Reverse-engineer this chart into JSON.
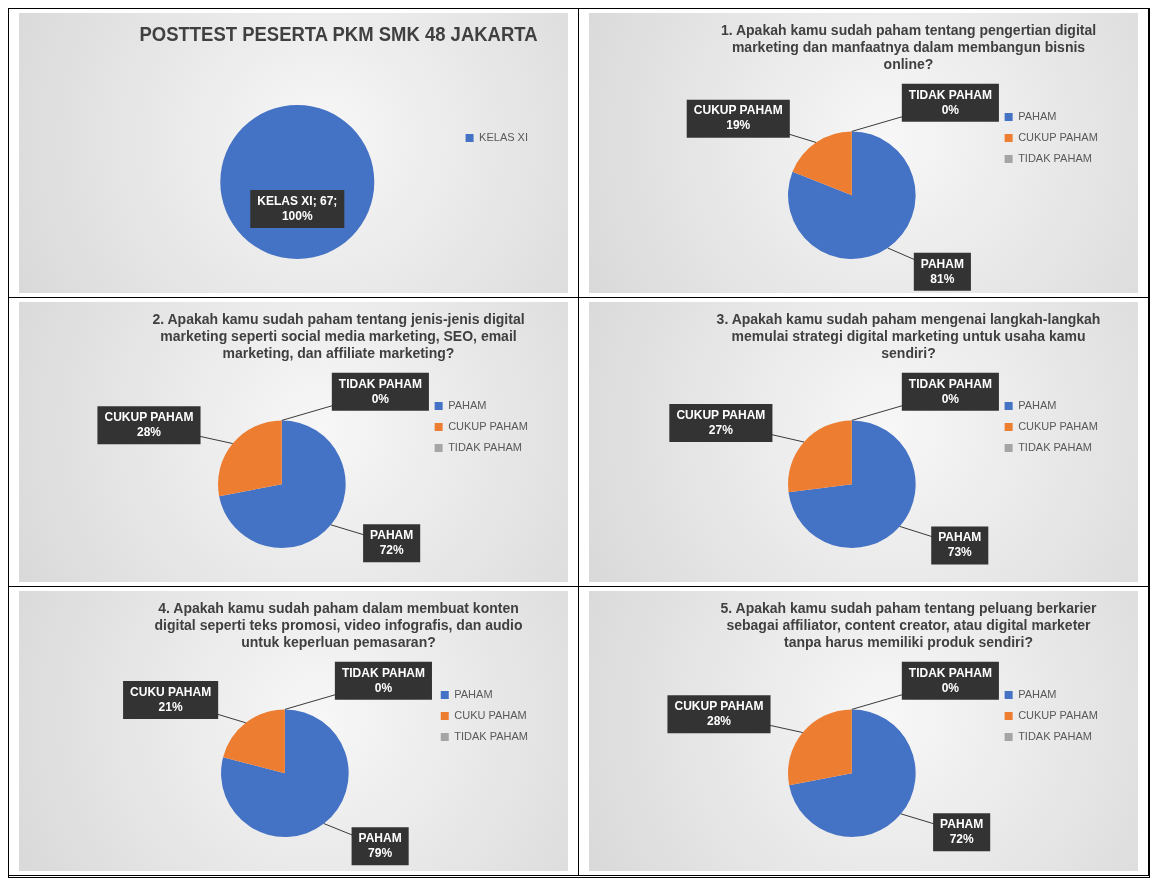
{
  "chart_data": [
    {
      "type": "pie",
      "title": "POSTTEST PESERTA PKM SMK 48 JAKARTA",
      "categories": [
        "KELAS XI"
      ],
      "values": [
        67
      ],
      "colors": [
        "#4472c4"
      ],
      "value_labels": [
        "KELAS XI; 67; 100%"
      ],
      "legend": "right"
    },
    {
      "type": "pie",
      "title": "1. Apakah kamu sudah paham tentang pengertian digital marketing dan manfaatnya dalam membangun bisnis online?",
      "categories": [
        "PAHAM",
        "CUKUP PAHAM",
        "TIDAK PAHAM"
      ],
      "values": [
        81,
        19,
        0
      ],
      "colors": [
        "#4472c4",
        "#ed7d31",
        "#a5a5a5"
      ],
      "value_labels": [
        "PAHAM 81%",
        "CUKUP PAHAM 19%",
        "TIDAK PAHAM 0%"
      ],
      "legend": "right"
    },
    {
      "type": "pie",
      "title": "2. Apakah kamu sudah paham tentang jenis-jenis digital marketing seperti social media marketing, SEO, email marketing, dan affiliate marketing?",
      "categories": [
        "PAHAM",
        "CUKUP PAHAM",
        "TIDAK PAHAM"
      ],
      "values": [
        72,
        28,
        0
      ],
      "colors": [
        "#4472c4",
        "#ed7d31",
        "#a5a5a5"
      ],
      "value_labels": [
        "PAHAM 72%",
        "CUKUP PAHAM 28%",
        "TIDAK PAHAM 0%"
      ],
      "legend": "right"
    },
    {
      "type": "pie",
      "title": "3. Apakah kamu sudah paham mengenai langkah-langkah memulai strategi digital marketing untuk usaha kamu sendiri?",
      "categories": [
        "PAHAM",
        "CUKUP PAHAM",
        "TIDAK PAHAM"
      ],
      "values": [
        73,
        27,
        0
      ],
      "colors": [
        "#4472c4",
        "#ed7d31",
        "#a5a5a5"
      ],
      "value_labels": [
        "PAHAM 73%",
        "CUKUP PAHAM 27%",
        "TIDAK PAHAM 0%"
      ],
      "legend": "right"
    },
    {
      "type": "pie",
      "title": "4. Apakah kamu sudah paham dalam membuat konten digital seperti teks promosi, video infografis, dan audio untuk keperluan pemasaran?",
      "categories": [
        "PAHAM",
        "CUKU PAHAM",
        "TIDAK PAHAM"
      ],
      "values": [
        79,
        21,
        0
      ],
      "colors": [
        "#4472c4",
        "#ed7d31",
        "#a5a5a5"
      ],
      "value_labels": [
        "PAHAM 79%",
        "CUKU PAHAM 21%",
        "TIDAK PAHAM 0%"
      ],
      "legend": "right"
    },
    {
      "type": "pie",
      "title": "5. Apakah kamu sudah paham tentang peluang berkarier sebagai affiliator, content creator, atau digital marketer tanpa harus memiliki produk sendiri?",
      "categories": [
        "PAHAM",
        "CUKUP PAHAM",
        "TIDAK PAHAM"
      ],
      "values": [
        72,
        28,
        0
      ],
      "colors": [
        "#4472c4",
        "#ed7d31",
        "#a5a5a5"
      ],
      "value_labels": [
        "PAHAM 72%",
        "CUKUP PAHAM 28%",
        "TIDAK PAHAM 0%"
      ],
      "legend": "right"
    }
  ]
}
